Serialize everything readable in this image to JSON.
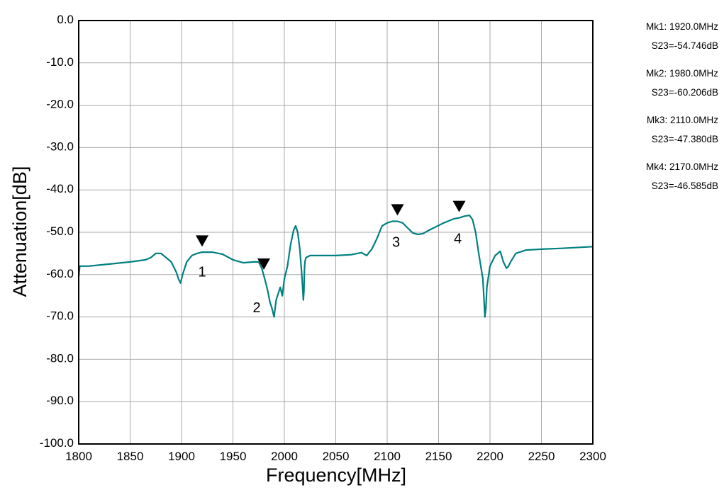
{
  "chart_data": {
    "type": "line",
    "xlabel": "Frequency[MHz]",
    "ylabel": "Attenuation[dB]",
    "xlim": [
      1800,
      2300
    ],
    "ylim": [
      -100,
      0
    ],
    "x_ticks": [
      "1800",
      "1850",
      "1900",
      "1950",
      "2000",
      "2050",
      "2100",
      "2150",
      "2200",
      "2250",
      "2300"
    ],
    "y_ticks": [
      "0.0",
      "-10.0",
      "-20.0",
      "-30.0",
      "-40.0",
      "-50.0",
      "-60.0",
      "-70.0",
      "-80.0",
      "-90.0",
      "-100.0"
    ],
    "grid": true,
    "line_color": "#008080",
    "series": [
      {
        "x": [
          1800,
          1801,
          1810,
          1830,
          1850,
          1865,
          1870,
          1875,
          1880,
          1885,
          1890,
          1895,
          1897,
          1899,
          1901,
          1905,
          1910,
          1915,
          1920,
          1930,
          1940,
          1950,
          1960,
          1970,
          1975,
          1978,
          1980,
          1982,
          1984,
          1986,
          1988,
          1990,
          1992,
          1994,
          1996,
          1998,
          2000,
          2003,
          2006,
          2009,
          2011,
          2013,
          2015,
          2017,
          2018,
          2018.5,
          2019,
          2019.5,
          2020,
          2021,
          2025,
          2035,
          2050,
          2065,
          2075,
          2080,
          2085,
          2090,
          2095,
          2100,
          2105,
          2110,
          2115,
          2120,
          2125,
          2130,
          2135,
          2140,
          2145,
          2150,
          2155,
          2160,
          2165,
          2170,
          2175,
          2180,
          2183,
          2186,
          2189,
          2191,
          2193,
          2194,
          2195,
          2196,
          2197,
          2200,
          2205,
          2210,
          2213,
          2216,
          2218,
          2220,
          2225,
          2235,
          2250,
          2270,
          2300
        ],
        "y": [
          -60.5,
          -58.0,
          -58.0,
          -57.5,
          -57.0,
          -56.5,
          -56.0,
          -55.0,
          -55.0,
          -56.0,
          -57.0,
          -59.5,
          -61.0,
          -62.0,
          -60.0,
          -57.0,
          -55.5,
          -55.0,
          -54.7,
          -54.7,
          -55.2,
          -56.5,
          -57.2,
          -57.0,
          -57.0,
          -58.5,
          -60.2,
          -62.0,
          -64.0,
          -66.5,
          -68.0,
          -70.0,
          -66.0,
          -64.5,
          -63.0,
          -65.0,
          -61.0,
          -58.0,
          -53.0,
          -49.5,
          -48.5,
          -50.0,
          -54.0,
          -60.0,
          -64.0,
          -66.0,
          -64.0,
          -59.0,
          -57.0,
          -56.0,
          -55.5,
          -55.5,
          -55.5,
          -55.3,
          -54.8,
          -55.5,
          -54.0,
          -51.5,
          -48.5,
          -47.8,
          -47.4,
          -47.4,
          -47.8,
          -49.0,
          -50.2,
          -50.5,
          -50.3,
          -49.6,
          -49.0,
          -48.4,
          -47.8,
          -47.3,
          -46.8,
          -46.6,
          -46.2,
          -46.0,
          -47.0,
          -50.0,
          -55.0,
          -58.0,
          -61.0,
          -65.0,
          -70.0,
          -68.0,
          -63.0,
          -58.0,
          -55.5,
          -54.5,
          -57.0,
          -58.5,
          -58.0,
          -57.0,
          -55.0,
          -54.2,
          -54.0,
          -53.8,
          -53.4
        ]
      }
    ],
    "markers": [
      {
        "label": "1",
        "x": 1920,
        "y": -54.746
      },
      {
        "label": "2",
        "x": 1980,
        "y": -60.206
      },
      {
        "label": "3",
        "x": 2110,
        "y": -47.38
      },
      {
        "label": "4",
        "x": 2170,
        "y": -46.585
      }
    ]
  },
  "marker_readouts": [
    {
      "freq": "Mk1: 1920.0MHz",
      "value": "S23=-54.746dB"
    },
    {
      "freq": "Mk2: 1980.0MHz",
      "value": "S23=-60.206dB"
    },
    {
      "freq": "Mk3: 2110.0MHz",
      "value": "S23=-47.380dB"
    },
    {
      "freq": "Mk4: 2170.0MHz",
      "value": "S23=-46.585dB"
    }
  ]
}
